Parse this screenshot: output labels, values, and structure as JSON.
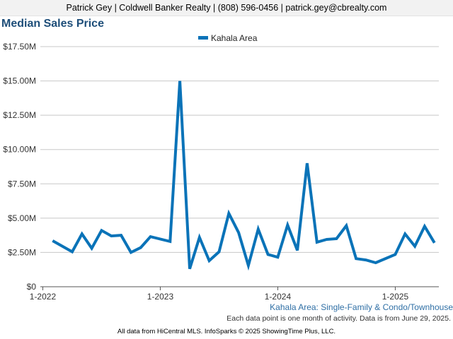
{
  "header": {
    "contact": "Patrick Gey | Coldwell Banker Realty | (808) 596-0456 | patrick.gey@cbrealty.com"
  },
  "chart_data": {
    "type": "line",
    "title": "Median Sales Price",
    "series": [
      {
        "name": "Kahala Area",
        "color": "#0a73b8",
        "points": [
          [
            "2022-02",
            3.35
          ],
          [
            "2022-04",
            2.55
          ],
          [
            "2022-05",
            3.85
          ],
          [
            "2022-06",
            2.8
          ],
          [
            "2022-07",
            4.1
          ],
          [
            "2022-08",
            3.7
          ],
          [
            "2022-09",
            3.75
          ],
          [
            "2022-10",
            2.5
          ],
          [
            "2022-11",
            2.85
          ],
          [
            "2022-12",
            3.65
          ],
          [
            "2023-02",
            3.3
          ],
          [
            "2023-03",
            15.0
          ],
          [
            "2023-04",
            1.3
          ],
          [
            "2023-05",
            3.6
          ],
          [
            "2023-06",
            1.9
          ],
          [
            "2023-07",
            2.55
          ],
          [
            "2023-08",
            5.35
          ],
          [
            "2023-09",
            3.95
          ],
          [
            "2023-10",
            1.55
          ],
          [
            "2023-11",
            4.2
          ],
          [
            "2023-12",
            2.35
          ],
          [
            "2024-01",
            2.15
          ],
          [
            "2024-02",
            4.5
          ],
          [
            "2024-03",
            2.65
          ],
          [
            "2024-04",
            9.0
          ],
          [
            "2024-05",
            3.25
          ],
          [
            "2024-06",
            3.45
          ],
          [
            "2024-07",
            3.5
          ],
          [
            "2024-08",
            4.45
          ],
          [
            "2024-09",
            2.05
          ],
          [
            "2024-10",
            1.95
          ],
          [
            "2024-11",
            1.75
          ],
          [
            "2025-01",
            2.35
          ],
          [
            "2025-02",
            3.85
          ],
          [
            "2025-03",
            2.95
          ],
          [
            "2025-04",
            4.4
          ],
          [
            "2025-05",
            3.2
          ]
        ]
      }
    ],
    "y_axis": {
      "min": 0,
      "max": 17.5,
      "unit": "millions USD",
      "ticks": [
        {
          "value": 0,
          "label": "$0"
        },
        {
          "value": 2.5,
          "label": "$2.50M"
        },
        {
          "value": 5,
          "label": "$5.00M"
        },
        {
          "value": 7.5,
          "label": "$7.50M"
        },
        {
          "value": 10,
          "label": "$10.00M"
        },
        {
          "value": 12.5,
          "label": "$12.50M"
        },
        {
          "value": 15,
          "label": "$15.00M"
        },
        {
          "value": 17.5,
          "label": "$17.50M"
        }
      ]
    },
    "x_axis": {
      "min": "2022-01",
      "max": "2025-05",
      "ticks": [
        {
          "value": "2022-01",
          "label": "1-2022"
        },
        {
          "value": "2023-01",
          "label": "1-2023"
        },
        {
          "value": "2024-01",
          "label": "1-2024"
        },
        {
          "value": "2025-01",
          "label": "1-2025"
        }
      ]
    },
    "grid": "horizontal",
    "legend_position": "top-center",
    "caption": "Kahala Area: Single-Family & Condo/Townhouse",
    "note": "Each data point is one month of activity. Data is from June 29, 2025."
  },
  "footer": {
    "credit": "All data from HiCentral MLS. InfoSparks © 2025 ShowingTime Plus, LLC."
  }
}
